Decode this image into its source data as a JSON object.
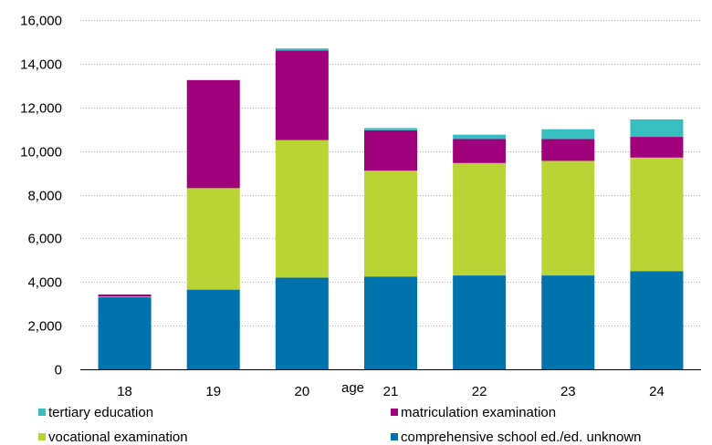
{
  "chart_data": {
    "type": "bar",
    "stacked": true,
    "categories": [
      "18",
      "19",
      "20",
      "21",
      "22",
      "23",
      "24"
    ],
    "xlabel": "age",
    "ylabel": "",
    "ylim": [
      0,
      16000
    ],
    "yticks": [
      0,
      2000,
      4000,
      6000,
      8000,
      10000,
      12000,
      14000,
      16000
    ],
    "ytick_labels": [
      "0",
      "2,000",
      "4,000",
      "6,000",
      "8,000",
      "10,000",
      "12,000",
      "14,000",
      "16,000"
    ],
    "grid": true,
    "legend_position": "bottom",
    "series": [
      {
        "name": "comprehensive school ed./ed. unknown",
        "color": "#0072ac",
        "values": [
          3300,
          3650,
          4200,
          4250,
          4300,
          4300,
          4500
        ]
      },
      {
        "name": "vocational examination",
        "color": "#b9d434",
        "values": [
          30,
          4650,
          6300,
          4850,
          5150,
          5250,
          5200
        ]
      },
      {
        "name": "matriculation examination",
        "color": "#a0007b",
        "values": [
          100,
          4950,
          4100,
          1850,
          1100,
          1000,
          950
        ]
      },
      {
        "name": "tertiary education",
        "color": "#37bfc0",
        "values": [
          0,
          0,
          100,
          100,
          200,
          450,
          800
        ]
      }
    ],
    "legend_order": [
      "tertiary education",
      "matriculation examination",
      "vocational examination",
      "comprehensive school ed./ed. unknown"
    ]
  }
}
